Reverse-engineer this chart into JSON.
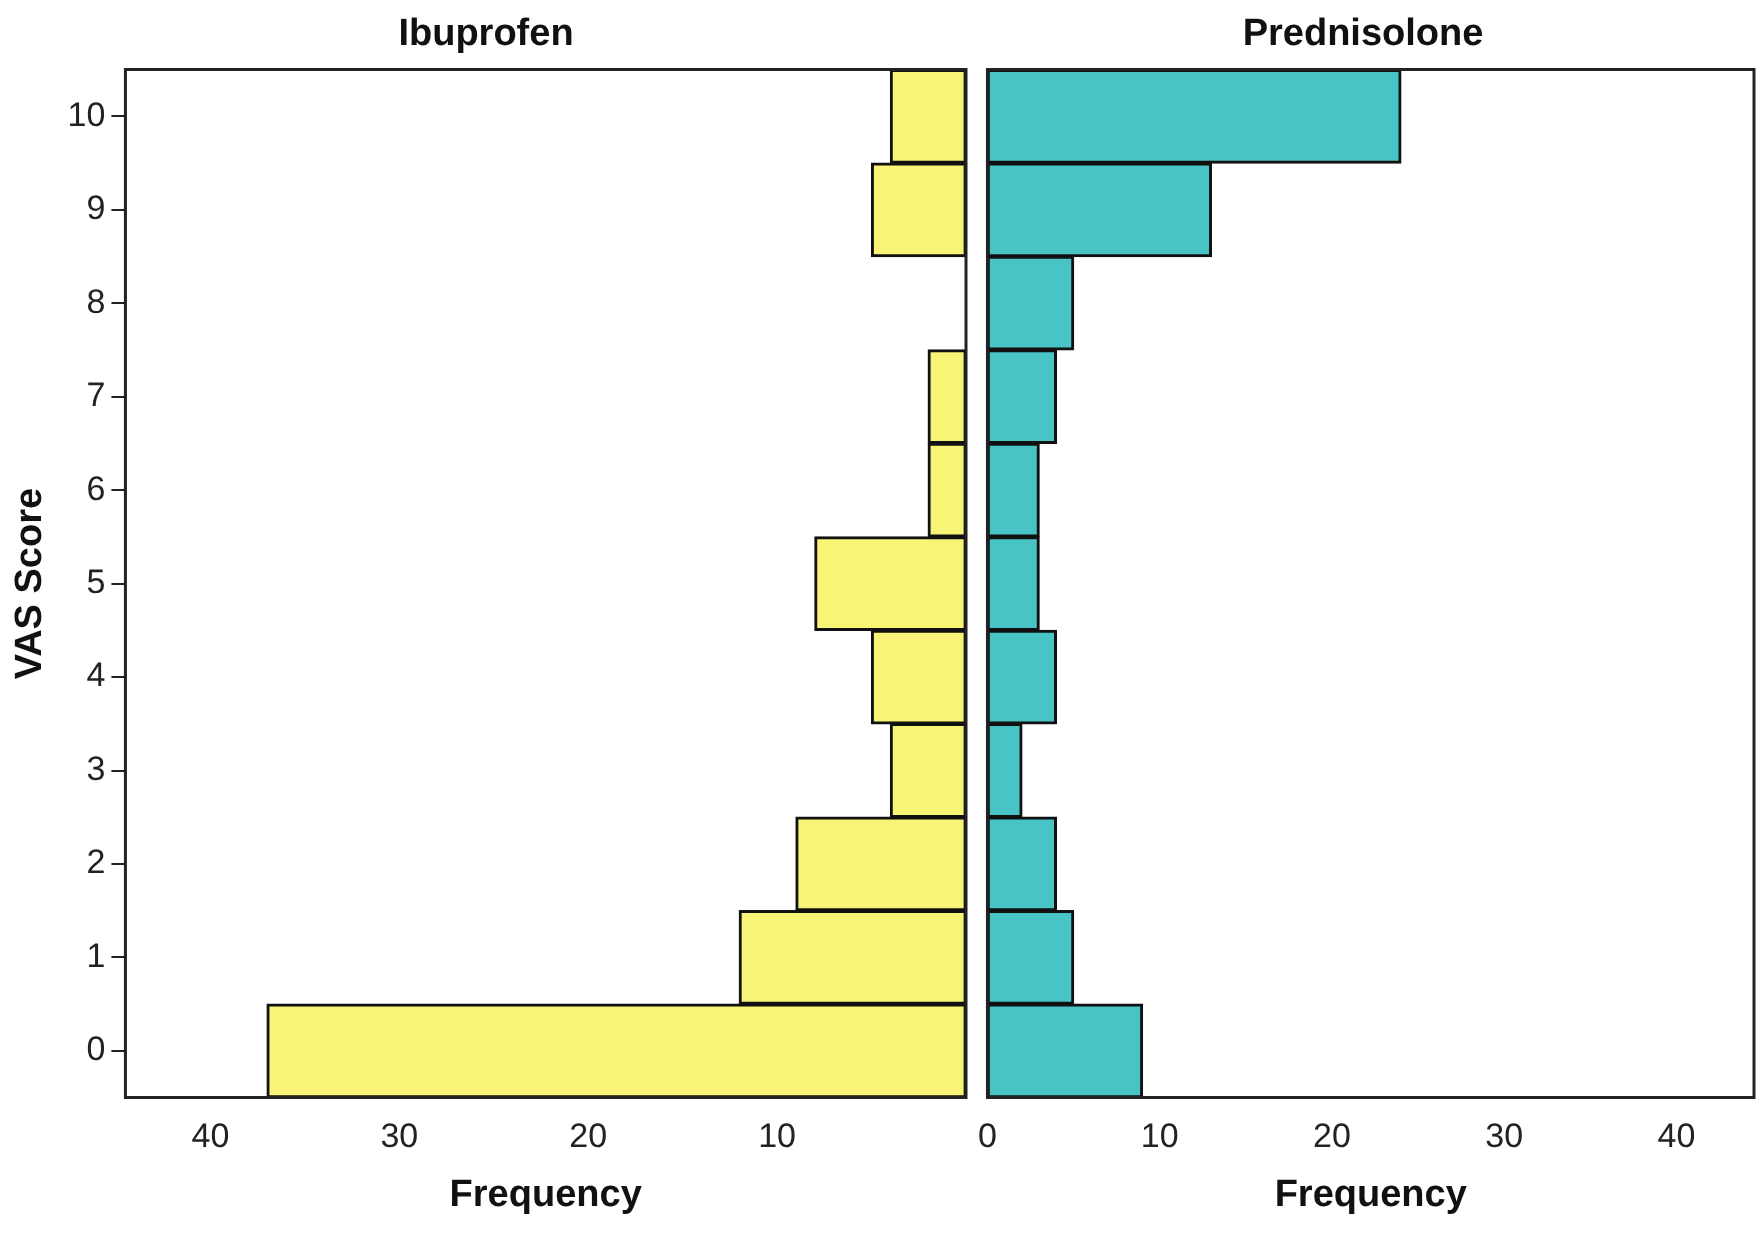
{
  "chart_data": [
    {
      "type": "bar",
      "orientation": "horizontal",
      "title": "Ibuprofen",
      "xlabel": "Frequency",
      "ylabel": "VAS Score",
      "categories": [
        "10",
        "9",
        "8",
        "7",
        "6",
        "5",
        "4",
        "3",
        "2",
        "1",
        "0"
      ],
      "series": [
        {
          "color": "#f8f475",
          "values": [
            4,
            5,
            0,
            2,
            2,
            8,
            5,
            4,
            9,
            12,
            37
          ]
        }
      ],
      "xlim": [
        44.5,
        0
      ],
      "xticks": [
        40,
        30,
        20,
        10,
        {
          "value": 0,
          "label": null
        }
      ]
    },
    {
      "type": "bar",
      "orientation": "horizontal",
      "title": "Prednisolone",
      "xlabel": "Frequency",
      "categories": [
        "10",
        "9",
        "8",
        "7",
        "6",
        "5",
        "4",
        "3",
        "2",
        "1",
        "0"
      ],
      "series": [
        {
          "color": "#48c4c6",
          "values": [
            24,
            13,
            5,
            4,
            3,
            3,
            4,
            2,
            4,
            5,
            9
          ]
        }
      ],
      "xlim": [
        0,
        44.5
      ],
      "xticks": [
        0,
        10,
        20,
        30,
        40
      ],
      "tick_labels": "x"
    }
  ]
}
